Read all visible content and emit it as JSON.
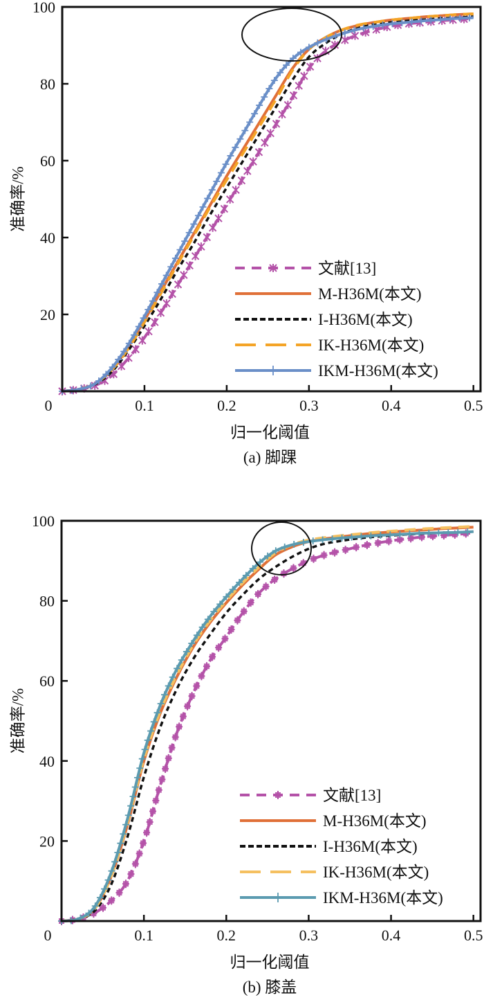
{
  "chart_data": [
    {
      "type": "line",
      "caption": "(a) 脚踝",
      "xlabel": "归一化阈值",
      "ylabel": "准确率/%",
      "xlim": [
        0,
        0.5
      ],
      "ylim": [
        0,
        100
      ],
      "xticks": [
        "0",
        "0.1",
        "0.2",
        "0.3",
        "0.4",
        "0.5"
      ],
      "yticks": [
        "20",
        "40",
        "60",
        "80",
        "100"
      ],
      "legend_position": "bottom-right",
      "annotation": "ellipse around x≈0.27, y≈93",
      "x": [
        0,
        0.02,
        0.04,
        0.06,
        0.08,
        0.1,
        0.12,
        0.14,
        0.16,
        0.18,
        0.2,
        0.22,
        0.24,
        0.26,
        0.28,
        0.3,
        0.32,
        0.34,
        0.36,
        0.38,
        0.4,
        0.42,
        0.44,
        0.46,
        0.48,
        0.5
      ],
      "series": [
        {
          "name": "文献[13]",
          "color": "#b452a8",
          "style": "dash-x",
          "values": [
            0,
            0.5,
            1.5,
            4,
            8.5,
            14,
            20.5,
            27.5,
            34.5,
            41.5,
            48.5,
            55.5,
            62.5,
            69.5,
            76.5,
            84,
            88.5,
            91,
            92.8,
            94,
            95,
            95.6,
            96,
            96.4,
            96.7,
            97
          ]
        },
        {
          "name": "M-H36M(本文)",
          "color": "#e07038",
          "style": "solid",
          "values": [
            0,
            0.5,
            2,
            5.5,
            11.5,
            18.5,
            26,
            33.5,
            41,
            48.5,
            56,
            63,
            70,
            77,
            84,
            89,
            92,
            94,
            95.2,
            96,
            96.6,
            97,
            97.4,
            97.7,
            98,
            98.2
          ]
        },
        {
          "name": "I-H36M(本文)",
          "color": "#111111",
          "style": "dash",
          "values": [
            0,
            0.5,
            1.8,
            5,
            10.5,
            17,
            24,
            31.5,
            38.5,
            46,
            53,
            60,
            67,
            74,
            81,
            87,
            90.5,
            93,
            94.5,
            95.5,
            96,
            96.4,
            96.7,
            97,
            97.2,
            97.5
          ]
        },
        {
          "name": "IK-H36M(本文)",
          "color": "#f4a427",
          "style": "long-dash",
          "values": [
            0,
            0.5,
            2,
            5.5,
            11,
            18,
            25.5,
            33,
            40.5,
            48,
            55,
            62,
            69,
            76,
            83.5,
            89,
            92,
            94,
            95.3,
            96,
            96.6,
            97,
            97.4,
            97.7,
            98,
            98.2
          ]
        },
        {
          "name": "IKM-H36M(本文)",
          "color": "#6a8fc8",
          "style": "solid-plus",
          "values": [
            0,
            0.5,
            2,
            6,
            12,
            19.5,
            27.5,
            35.5,
            43.5,
            51.5,
            59.5,
            67,
            74.5,
            81.5,
            86.5,
            89.5,
            91.5,
            93,
            94.2,
            95,
            95.6,
            96,
            96.4,
            96.7,
            97,
            97.2
          ]
        }
      ]
    },
    {
      "type": "line",
      "caption": "(b) 膝盖",
      "xlabel": "归一化阈值",
      "ylabel": "准确率/%",
      "xlim": [
        0,
        0.5
      ],
      "ylim": [
        0,
        100
      ],
      "xticks": [
        "0",
        "0.1",
        "0.2",
        "0.3",
        "0.4",
        "0.5"
      ],
      "yticks": [
        "20",
        "40",
        "60",
        "80",
        "100"
      ],
      "legend_position": "bottom-right",
      "annotation": "ellipse around x≈0.28, y≈95",
      "x": [
        0,
        0.02,
        0.04,
        0.06,
        0.08,
        0.1,
        0.12,
        0.14,
        0.16,
        0.18,
        0.2,
        0.22,
        0.24,
        0.26,
        0.28,
        0.3,
        0.32,
        0.34,
        0.36,
        0.38,
        0.4,
        0.42,
        0.44,
        0.46,
        0.48,
        0.5
      ],
      "series": [
        {
          "name": "文献[13]",
          "color": "#b452a8",
          "style": "dash-square",
          "values": [
            0,
            0.5,
            2,
            5,
            10,
            20,
            34,
            47,
            57,
            65,
            71,
            77,
            82,
            85.5,
            88,
            90,
            91.5,
            92.5,
            93.5,
            94.3,
            95,
            95.5,
            96,
            96.3,
            96.6,
            97
          ]
        },
        {
          "name": "M-H36M(本文)",
          "color": "#e07038",
          "style": "solid",
          "values": [
            0,
            0.5,
            3,
            11,
            24,
            40,
            52,
            61,
            68.5,
            74.5,
            79.5,
            84,
            88,
            91.5,
            93.5,
            94.8,
            95.5,
            96,
            96.5,
            96.9,
            97.2,
            97.5,
            97.7,
            98,
            98.2,
            98.4
          ]
        },
        {
          "name": "I-H36M(本文)",
          "color": "#111111",
          "style": "dash",
          "values": [
            0,
            0.5,
            2.5,
            9,
            21,
            36,
            48.5,
            58,
            65.5,
            71.5,
            77,
            81.5,
            85.5,
            88.5,
            91,
            93,
            94.3,
            95,
            95.6,
            96,
            96.3,
            96.6,
            96.8,
            97,
            97.1,
            97.3
          ]
        },
        {
          "name": "IK-H36M(本文)",
          "color": "#f5c060",
          "style": "long-dash",
          "values": [
            0,
            0.5,
            3,
            11,
            24.5,
            40.5,
            52.5,
            61.5,
            69,
            75,
            80,
            84.5,
            88.5,
            92,
            94,
            95.2,
            95.8,
            96.3,
            96.7,
            97.1,
            97.4,
            97.7,
            98,
            98.2,
            98.4,
            98.6
          ]
        },
        {
          "name": "IKM-H36M(本文)",
          "color": "#5b9bb0",
          "style": "solid-plus",
          "values": [
            0,
            0.5,
            3.5,
            12,
            25.5,
            42,
            54,
            63,
            70,
            76,
            81,
            85.5,
            89.5,
            92.5,
            94,
            94.8,
            95.3,
            95.7,
            96,
            96.3,
            96.5,
            96.7,
            96.9,
            97,
            97.1,
            97.3
          ]
        }
      ]
    }
  ]
}
